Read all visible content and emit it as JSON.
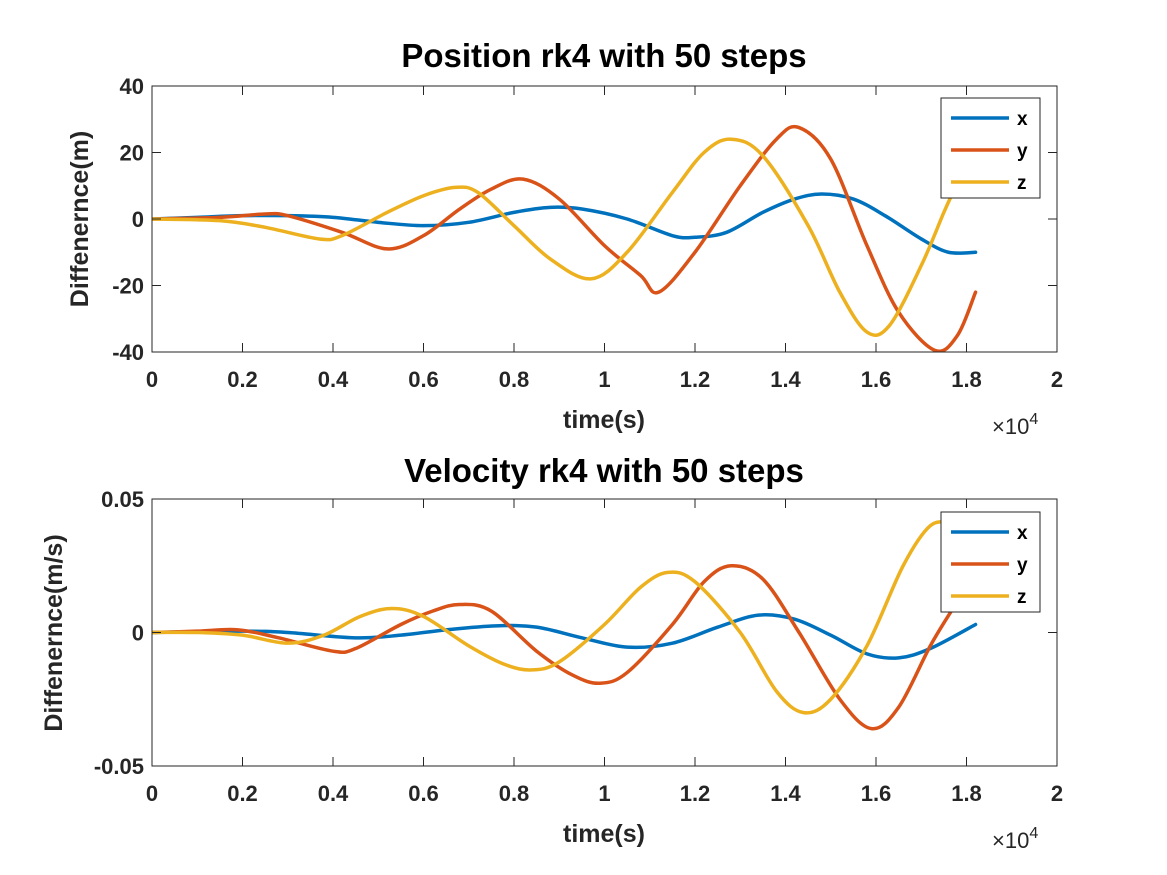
{
  "chart_data": [
    {
      "type": "line",
      "title": "Position rk4 with 50 steps",
      "xlabel": "time(s)",
      "ylabel": "Diffenernce(m)",
      "x_exponent_label": "×10",
      "x_exponent_power": "4",
      "xlim": [
        0,
        2
      ],
      "ylim": [
        -40,
        40
      ],
      "xticks": [
        "0",
        "0.2",
        "0.4",
        "0.6",
        "0.8",
        "1",
        "1.2",
        "1.4",
        "1.6",
        "1.8",
        "2"
      ],
      "yticks": [
        "-40",
        "-20",
        "0",
        "20",
        "40"
      ],
      "legend_position": "top-right",
      "x_end": 1.82,
      "series": [
        {
          "name": "x",
          "color": "#0072BD",
          "points": [
            [
              0,
              0
            ],
            [
              0.1,
              0.5
            ],
            [
              0.2,
              1
            ],
            [
              0.3,
              1
            ],
            [
              0.4,
              0.5
            ],
            [
              0.5,
              -1
            ],
            [
              0.6,
              -2
            ],
            [
              0.7,
              -1
            ],
            [
              0.8,
              2
            ],
            [
              0.88,
              3.5
            ],
            [
              0.95,
              3
            ],
            [
              1.05,
              0
            ],
            [
              1.15,
              -5
            ],
            [
              1.2,
              -5.5
            ],
            [
              1.27,
              -4
            ],
            [
              1.35,
              2
            ],
            [
              1.42,
              6
            ],
            [
              1.48,
              7.5
            ],
            [
              1.55,
              6
            ],
            [
              1.62,
              1
            ],
            [
              1.7,
              -6
            ],
            [
              1.76,
              -10
            ],
            [
              1.82,
              -10
            ]
          ]
        },
        {
          "name": "y",
          "color": "#D95319",
          "points": [
            [
              0,
              0
            ],
            [
              0.15,
              0.5
            ],
            [
              0.25,
              1.5
            ],
            [
              0.3,
              1
            ],
            [
              0.42,
              -4
            ],
            [
              0.52,
              -9
            ],
            [
              0.6,
              -5
            ],
            [
              0.68,
              3
            ],
            [
              0.75,
              9
            ],
            [
              0.82,
              12
            ],
            [
              0.9,
              6
            ],
            [
              1.0,
              -8
            ],
            [
              1.08,
              -17
            ],
            [
              1.12,
              -22
            ],
            [
              1.2,
              -10
            ],
            [
              1.3,
              10
            ],
            [
              1.38,
              24
            ],
            [
              1.43,
              27.5
            ],
            [
              1.5,
              18
            ],
            [
              1.58,
              -8
            ],
            [
              1.65,
              -28
            ],
            [
              1.73,
              -39.5
            ],
            [
              1.78,
              -35
            ],
            [
              1.82,
              -22
            ]
          ]
        },
        {
          "name": "z",
          "color": "#EDB120",
          "points": [
            [
              0,
              0
            ],
            [
              0.15,
              -0.5
            ],
            [
              0.25,
              -2.5
            ],
            [
              0.37,
              -6
            ],
            [
              0.42,
              -5
            ],
            [
              0.52,
              2
            ],
            [
              0.6,
              7
            ],
            [
              0.67,
              9.5
            ],
            [
              0.72,
              8
            ],
            [
              0.8,
              -2
            ],
            [
              0.88,
              -12
            ],
            [
              0.97,
              -18
            ],
            [
              1.05,
              -10
            ],
            [
              1.15,
              8
            ],
            [
              1.22,
              20
            ],
            [
              1.28,
              24
            ],
            [
              1.35,
              19
            ],
            [
              1.45,
              -2
            ],
            [
              1.52,
              -22
            ],
            [
              1.58,
              -34
            ],
            [
              1.63,
              -32
            ],
            [
              1.7,
              -14
            ],
            [
              1.75,
              2
            ],
            [
              1.77,
              8
            ]
          ]
        }
      ]
    },
    {
      "type": "line",
      "title": "Velocity rk4 with 50 steps",
      "xlabel": "time(s)",
      "ylabel": "Diffenernce(m/s)",
      "x_exponent_label": "×10",
      "x_exponent_power": "4",
      "xlim": [
        0,
        2
      ],
      "ylim": [
        -0.05,
        0.05
      ],
      "xticks": [
        "0",
        "0.2",
        "0.4",
        "0.6",
        "0.8",
        "1",
        "1.2",
        "1.4",
        "1.6",
        "1.8",
        "2"
      ],
      "yticks": [
        "-0.05",
        "0",
        "0.05"
      ],
      "legend_position": "top-right",
      "x_end": 1.82,
      "series": [
        {
          "name": "x",
          "color": "#0072BD",
          "points": [
            [
              0,
              0
            ],
            [
              0.2,
              0.0005
            ],
            [
              0.3,
              0
            ],
            [
              0.45,
              -0.002
            ],
            [
              0.55,
              -0.001
            ],
            [
              0.65,
              0.001
            ],
            [
              0.76,
              0.0025
            ],
            [
              0.85,
              0.002
            ],
            [
              0.95,
              -0.002
            ],
            [
              1.05,
              -0.0055
            ],
            [
              1.15,
              -0.004
            ],
            [
              1.25,
              0.002
            ],
            [
              1.34,
              0.0065
            ],
            [
              1.42,
              0.005
            ],
            [
              1.5,
              -0.001
            ],
            [
              1.58,
              -0.008
            ],
            [
              1.65,
              -0.0095
            ],
            [
              1.72,
              -0.006
            ],
            [
              1.82,
              0.003
            ]
          ]
        },
        {
          "name": "y",
          "color": "#D95319",
          "points": [
            [
              0,
              0
            ],
            [
              0.1,
              0.0005
            ],
            [
              0.19,
              0.001
            ],
            [
              0.28,
              -0.002
            ],
            [
              0.4,
              -0.007
            ],
            [
              0.45,
              -0.006
            ],
            [
              0.55,
              0.003
            ],
            [
              0.62,
              0.008
            ],
            [
              0.68,
              0.0105
            ],
            [
              0.75,
              0.008
            ],
            [
              0.85,
              -0.007
            ],
            [
              0.93,
              -0.016
            ],
            [
              0.99,
              -0.019
            ],
            [
              1.05,
              -0.015
            ],
            [
              1.15,
              0.003
            ],
            [
              1.22,
              0.019
            ],
            [
              1.28,
              0.025
            ],
            [
              1.35,
              0.02
            ],
            [
              1.43,
              0
            ],
            [
              1.52,
              -0.025
            ],
            [
              1.59,
              -0.036
            ],
            [
              1.65,
              -0.028
            ],
            [
              1.72,
              -0.005
            ],
            [
              1.77,
              0.009
            ]
          ]
        },
        {
          "name": "z",
          "color": "#EDB120",
          "points": [
            [
              0,
              0
            ],
            [
              0.1,
              0
            ],
            [
              0.2,
              -0.001
            ],
            [
              0.3,
              -0.004
            ],
            [
              0.38,
              -0.001
            ],
            [
              0.46,
              0.006
            ],
            [
              0.53,
              0.009
            ],
            [
              0.6,
              0.006
            ],
            [
              0.7,
              -0.005
            ],
            [
              0.78,
              -0.012
            ],
            [
              0.84,
              -0.014
            ],
            [
              0.9,
              -0.011
            ],
            [
              1.0,
              0.003
            ],
            [
              1.08,
              0.017
            ],
            [
              1.14,
              0.0225
            ],
            [
              1.2,
              0.019
            ],
            [
              1.3,
              0
            ],
            [
              1.38,
              -0.022
            ],
            [
              1.44,
              -0.03
            ],
            [
              1.5,
              -0.025
            ],
            [
              1.58,
              -0.005
            ],
            [
              1.66,
              0.025
            ],
            [
              1.72,
              0.04
            ],
            [
              1.77,
              0.041
            ]
          ]
        }
      ]
    }
  ]
}
